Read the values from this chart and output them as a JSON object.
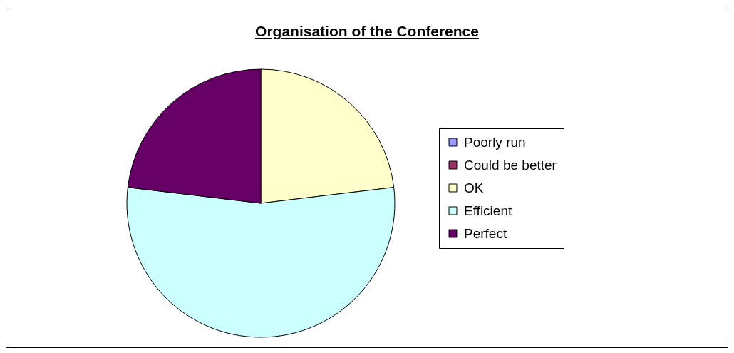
{
  "chart_data": {
    "type": "pie",
    "title": "Organisation of the Conference",
    "categories": [
      "Poorly run",
      "Could be better",
      "OK",
      "Efficient",
      "Perfect"
    ],
    "values": [
      0,
      0,
      23.1,
      53.8,
      23.1
    ],
    "colors": [
      "#9999ff",
      "#993366",
      "#ffffcc",
      "#ccffff",
      "#660066"
    ],
    "legend": "right"
  }
}
